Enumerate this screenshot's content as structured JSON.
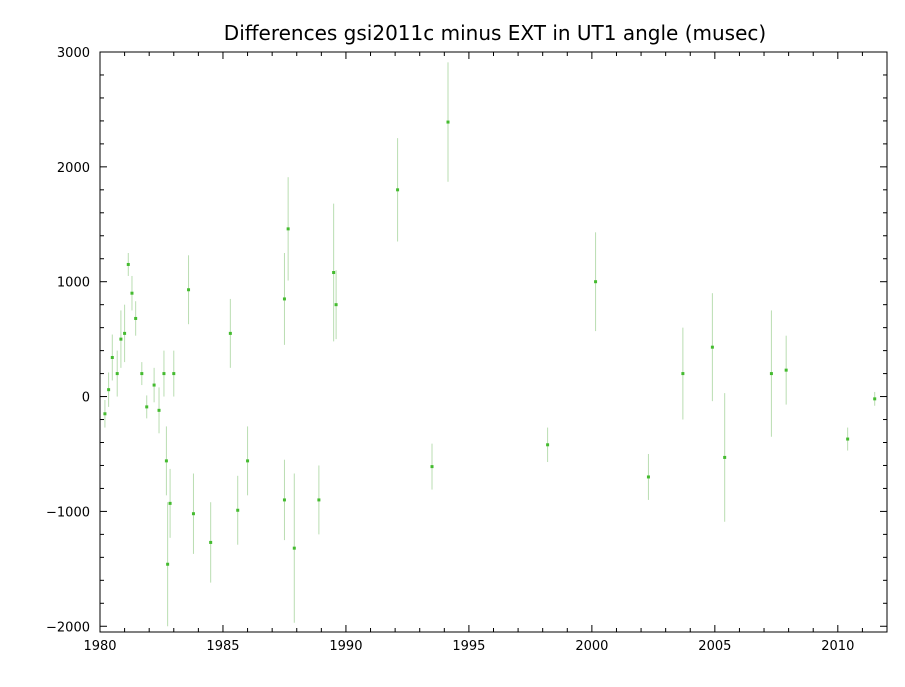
{
  "chart_data": {
    "type": "scatter",
    "title": "Differences gsi2011c minus EXT in UT1 angle   (musec)",
    "xlabel": "",
    "ylabel": "",
    "xlim": [
      1980,
      2012
    ],
    "ylim": [
      -2050,
      3000
    ],
    "x_ticks": [
      1980,
      1985,
      1990,
      1995,
      2000,
      2005,
      2010
    ],
    "y_ticks": [
      3000,
      2000,
      1000,
      0,
      -1000,
      -2000
    ],
    "y_tick_labels": [
      "3000",
      "2000",
      "1000",
      "0",
      "−1000",
      "−2000"
    ],
    "grid": false,
    "legend": "none",
    "colors": {
      "points": "#44bb2f",
      "error_bars": "#b9ddb1",
      "frame": "#000000"
    },
    "series": [
      {
        "points": [
          {
            "x": 1980.2,
            "y": -150,
            "err": 120
          },
          {
            "x": 1980.35,
            "y": 60,
            "err": 150
          },
          {
            "x": 1980.5,
            "y": 340,
            "err": 200
          },
          {
            "x": 1980.7,
            "y": 200,
            "err": 200
          },
          {
            "x": 1980.85,
            "y": 500,
            "err": 250
          },
          {
            "x": 1981.0,
            "y": 550,
            "err": 250
          },
          {
            "x": 1981.15,
            "y": 1150,
            "err": 100
          },
          {
            "x": 1981.3,
            "y": 900,
            "err": 150
          },
          {
            "x": 1981.45,
            "y": 680,
            "err": 150
          },
          {
            "x": 1981.7,
            "y": 200,
            "err": 100
          },
          {
            "x": 1981.9,
            "y": -90,
            "err": 100
          },
          {
            "x": 1982.2,
            "y": 100,
            "err": 150
          },
          {
            "x": 1982.4,
            "y": -120,
            "err": 200
          },
          {
            "x": 1982.6,
            "y": 200,
            "err": 200
          },
          {
            "x": 1982.7,
            "y": -560,
            "err": 300
          },
          {
            "x": 1982.75,
            "y": -1460,
            "err": 540
          },
          {
            "x": 1982.85,
            "y": -930,
            "err": 300
          },
          {
            "x": 1983.0,
            "y": 200,
            "err": 200
          },
          {
            "x": 1983.6,
            "y": 930,
            "err": 300
          },
          {
            "x": 1983.8,
            "y": -1020,
            "err": 350
          },
          {
            "x": 1984.5,
            "y": -1270,
            "err": 350
          },
          {
            "x": 1985.3,
            "y": 550,
            "err": 300
          },
          {
            "x": 1985.6,
            "y": -990,
            "err": 300
          },
          {
            "x": 1986.0,
            "y": -560,
            "err": 300
          },
          {
            "x": 1987.5,
            "y": 850,
            "err": 400
          },
          {
            "x": 1987.65,
            "y": 1460,
            "err": 450
          },
          {
            "x": 1987.5,
            "y": -900,
            "err": 350
          },
          {
            "x": 1987.9,
            "y": -1320,
            "err": 650
          },
          {
            "x": 1988.9,
            "y": -900,
            "err": 300
          },
          {
            "x": 1989.5,
            "y": 1080,
            "err": 600
          },
          {
            "x": 1989.6,
            "y": 800,
            "err": 300
          },
          {
            "x": 1992.1,
            "y": 1800,
            "err": 450
          },
          {
            "x": 1993.5,
            "y": -610,
            "err": 200
          },
          {
            "x": 1994.15,
            "y": 2390,
            "err": 520
          },
          {
            "x": 1998.2,
            "y": -420,
            "err": 150
          },
          {
            "x": 2000.15,
            "y": 1000,
            "err": 430
          },
          {
            "x": 2002.3,
            "y": -700,
            "err": 200
          },
          {
            "x": 2003.7,
            "y": 200,
            "err": 400
          },
          {
            "x": 2004.9,
            "y": 430,
            "err": 470
          },
          {
            "x": 2005.4,
            "y": -530,
            "err": 560
          },
          {
            "x": 2007.3,
            "y": 200,
            "err": 550
          },
          {
            "x": 2007.9,
            "y": 230,
            "err": 300
          },
          {
            "x": 2010.4,
            "y": -370,
            "err": 100
          },
          {
            "x": 2011.5,
            "y": -20,
            "err": 60
          }
        ]
      }
    ]
  }
}
